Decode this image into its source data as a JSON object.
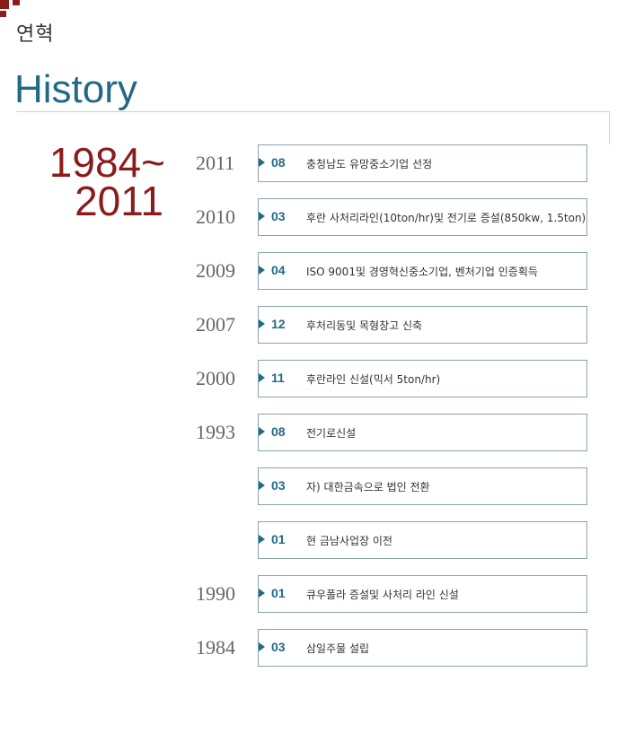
{
  "header": {
    "section_label": "연혁",
    "title": "History"
  },
  "period": {
    "start": "1984~",
    "end": "2011"
  },
  "timeline": [
    {
      "year": "2011",
      "month": "08",
      "event": "충청남도 유망중소기업 선정"
    },
    {
      "year": "2010",
      "month": "03",
      "event": "후란 사처리라인(10ton/hr)및 전기로 증설(850kw, 1.5ton)"
    },
    {
      "year": "2009",
      "month": "04",
      "event": "ISO 9001및 경영혁신중소기업, 벤처기업 인증획득"
    },
    {
      "year": "2007",
      "month": "12",
      "event": "후처리동및 목형창고 신축"
    },
    {
      "year": "2000",
      "month": "11",
      "event": "후란라인 신설(믹서 5ton/hr)"
    },
    {
      "year": "1993",
      "month": "08",
      "event": "전기로신설"
    },
    {
      "year": "",
      "month": "03",
      "event": "자) 대한금속으로 법인 전환"
    },
    {
      "year": "",
      "month": "01",
      "event": "현  금남사업장 이전"
    },
    {
      "year": "1990",
      "month": "01",
      "event": "큐우폴라 증설및 사처리 라인 신설"
    },
    {
      "year": "1984",
      "month": "03",
      "event": "삼일주물 설립"
    }
  ],
  "colors": {
    "accent": "#216a85",
    "brand_red": "#8b1c1c",
    "box_border": "#8aa3ad"
  }
}
